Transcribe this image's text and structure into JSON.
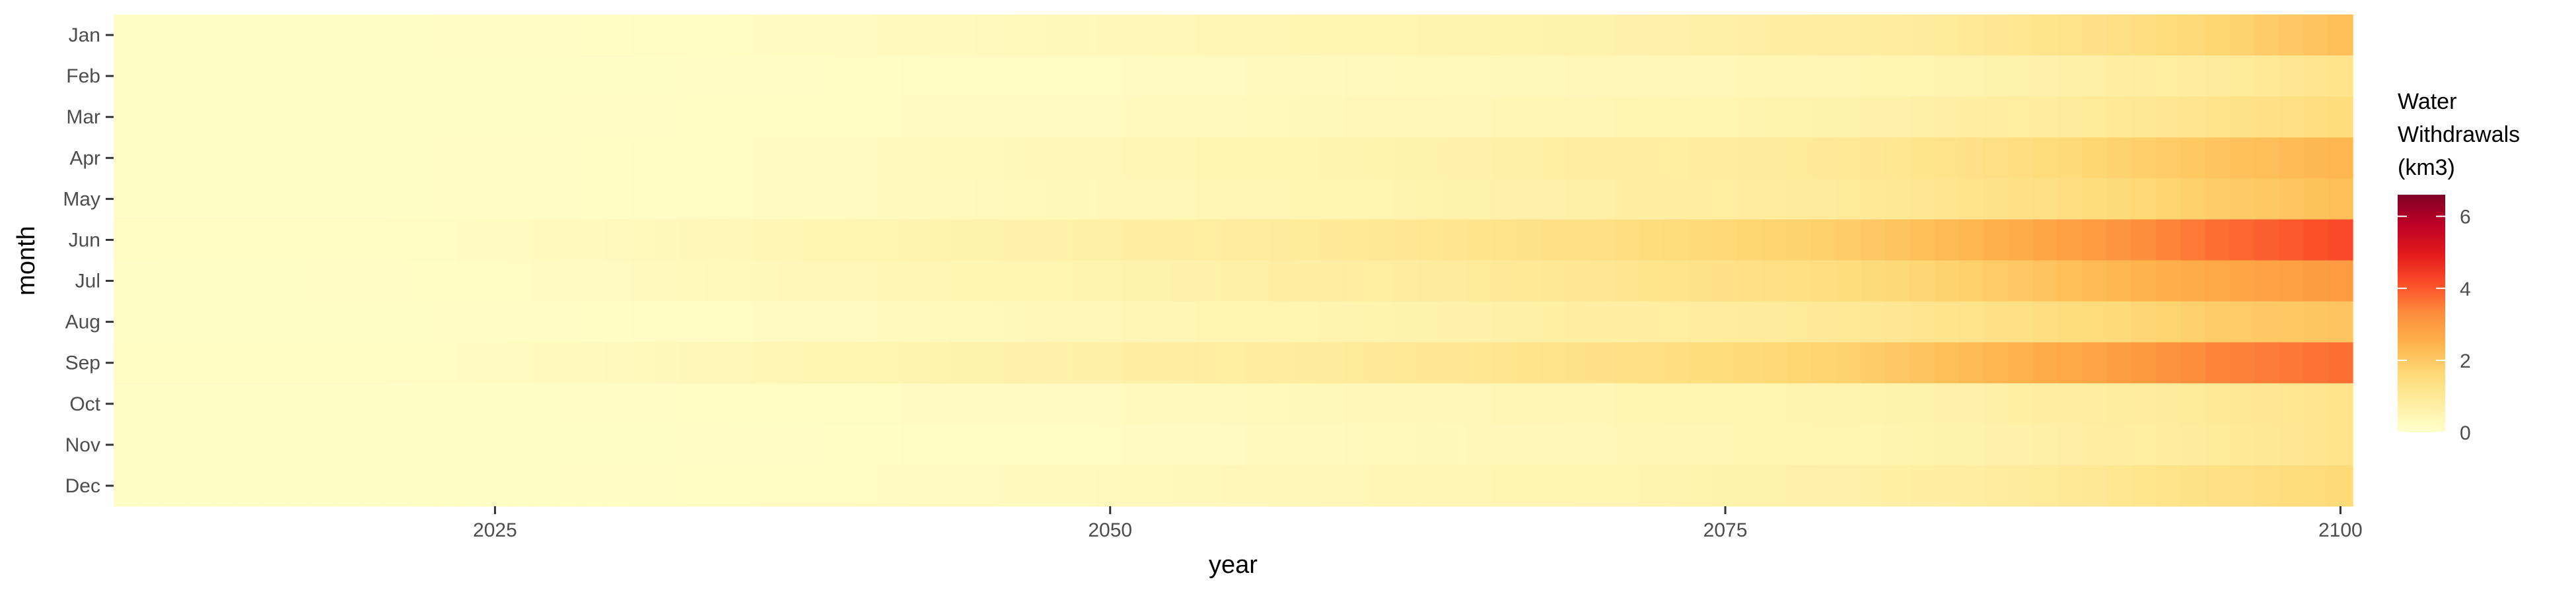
{
  "chart_data": {
    "type": "heatmap",
    "xlabel": "year",
    "ylabel": "month",
    "x_ticks": [
      "2025",
      "2050",
      "2075",
      "2100"
    ],
    "x_tick_values": [
      2025,
      2050,
      2075,
      2100
    ],
    "months": [
      "Jan",
      "Feb",
      "Mar",
      "Apr",
      "May",
      "Jun",
      "Jul",
      "Aug",
      "Sep",
      "Oct",
      "Nov",
      "Dec"
    ],
    "year_start": 2010,
    "year_end": 2100,
    "year_step": 1,
    "anchor_years": [
      2010,
      2020,
      2030,
      2040,
      2050,
      2060,
      2070,
      2080,
      2085,
      2090,
      2095,
      2100
    ],
    "monthly_values": {
      "Jan": [
        0.1,
        0.1,
        0.15,
        0.25,
        0.35,
        0.5,
        0.6,
        0.8,
        1.0,
        1.3,
        1.7,
        2.2
      ],
      "Feb": [
        0.1,
        0.1,
        0.1,
        0.15,
        0.2,
        0.3,
        0.35,
        0.45,
        0.55,
        0.7,
        0.9,
        1.2
      ],
      "Mar": [
        0.1,
        0.1,
        0.12,
        0.2,
        0.25,
        0.35,
        0.45,
        0.6,
        0.75,
        0.95,
        1.2,
        1.5
      ],
      "Apr": [
        0.1,
        0.1,
        0.15,
        0.25,
        0.4,
        0.55,
        0.75,
        1.0,
        1.3,
        1.7,
        2.1,
        2.4
      ],
      "May": [
        0.1,
        0.1,
        0.15,
        0.25,
        0.35,
        0.5,
        0.7,
        0.95,
        1.2,
        1.5,
        1.9,
        2.2
      ],
      "Jun": [
        0.15,
        0.15,
        0.3,
        0.5,
        0.7,
        1.0,
        1.4,
        1.9,
        2.4,
        3.0,
        3.7,
        4.2
      ],
      "Jul": [
        0.1,
        0.12,
        0.25,
        0.4,
        0.55,
        0.8,
        1.1,
        1.5,
        1.85,
        2.3,
        2.7,
        3.0
      ],
      "Aug": [
        0.1,
        0.1,
        0.15,
        0.25,
        0.4,
        0.55,
        0.75,
        1.0,
        1.25,
        1.55,
        1.9,
        2.1
      ],
      "Sep": [
        0.15,
        0.15,
        0.3,
        0.5,
        0.7,
        0.95,
        1.3,
        1.8,
        2.3,
        2.8,
        3.4,
        3.7
      ],
      "Oct": [
        0.1,
        0.1,
        0.12,
        0.2,
        0.25,
        0.35,
        0.45,
        0.55,
        0.65,
        0.8,
        1.0,
        1.2
      ],
      "Nov": [
        0.1,
        0.1,
        0.1,
        0.15,
        0.2,
        0.3,
        0.4,
        0.5,
        0.6,
        0.75,
        0.95,
        1.2
      ],
      "Dec": [
        0.1,
        0.1,
        0.12,
        0.2,
        0.3,
        0.4,
        0.5,
        0.65,
        0.8,
        1.05,
        1.35,
        1.6
      ]
    },
    "legend": {
      "title_lines": [
        "Water",
        "Withdrawals",
        "(km3)"
      ],
      "ticks": [
        "0",
        "2",
        "4",
        "6"
      ],
      "tick_values": [
        0,
        2,
        4,
        6
      ],
      "range": [
        0,
        6.6
      ]
    },
    "color_scale": [
      "#ffffcc",
      "#ffeda0",
      "#fed976",
      "#feb24c",
      "#fd8d3c",
      "#fc4e2a",
      "#e31a1c",
      "#bd0026",
      "#800026"
    ],
    "grid": false,
    "legend_position": "right"
  }
}
